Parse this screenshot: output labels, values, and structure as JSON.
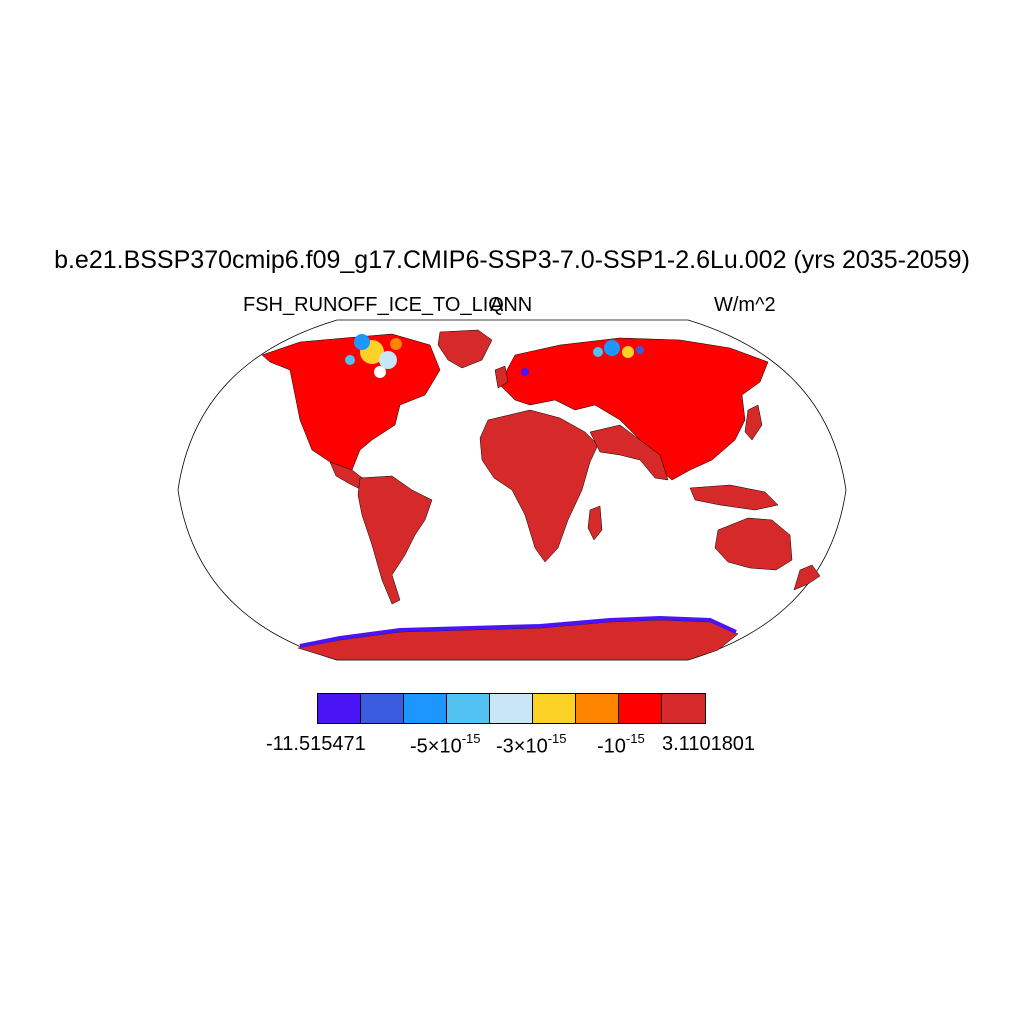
{
  "title": "b.e21.BSSP370cmip6.f09_g17.CMIP6-SSP3-7.0-SSP1-2.6Lu.002 (yrs 2035-2059)",
  "subtitle_left": "FSH_RUNOFF_ICE_TO_LIQ",
  "subtitle_center": "ANN",
  "subtitle_right": "W/m^2",
  "colorbar": {
    "colors": [
      "#4a14f5",
      "#3b5ce0",
      "#1e96ff",
      "#52c2f2",
      "#c8e6f6",
      "#fdd226",
      "#ff8400",
      "#ff0000",
      "#d62a2a"
    ],
    "labels": {
      "min": "-11.515471",
      "l1_base": "-5×10",
      "l1_exp": "-15",
      "l2_base": "-3×10",
      "l2_exp": "-15",
      "l3_base": "-10",
      "l3_exp": "-15",
      "max": "3.1101801"
    }
  },
  "map": {
    "projection": "Robinson",
    "land_color": "#d62a2a",
    "northern_land_color": "#ff0000",
    "coast_stroke": "#000000"
  }
}
